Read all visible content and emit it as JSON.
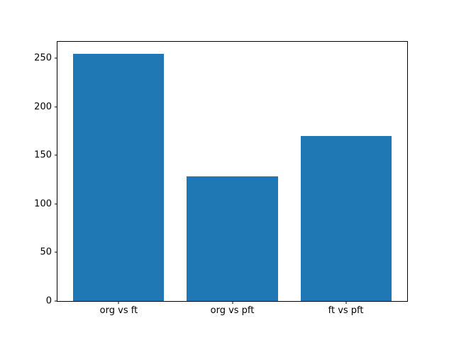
{
  "figure": {
    "background": "#ffffff",
    "axes_border_color": "#000000",
    "tick_color": "#000000",
    "text_color": "#000000"
  },
  "chart_data": {
    "type": "bar",
    "categories": [
      "org vs ft",
      "org vs pft",
      "ft vs pft"
    ],
    "values": [
      254,
      128,
      170
    ],
    "title": "",
    "xlabel": "",
    "ylabel": "",
    "ylim": [
      0,
      266.7
    ],
    "yticks": [
      0,
      50,
      100,
      150,
      200,
      250
    ],
    "ytick_labels": [
      "0",
      "50",
      "100",
      "150",
      "200",
      "250"
    ],
    "xlim": [
      -0.54,
      2.54
    ],
    "bar_centers": [
      0,
      1,
      2
    ],
    "bar_width": 0.8,
    "bar_color": "#1f77b4",
    "grid": false,
    "legend": null
  }
}
